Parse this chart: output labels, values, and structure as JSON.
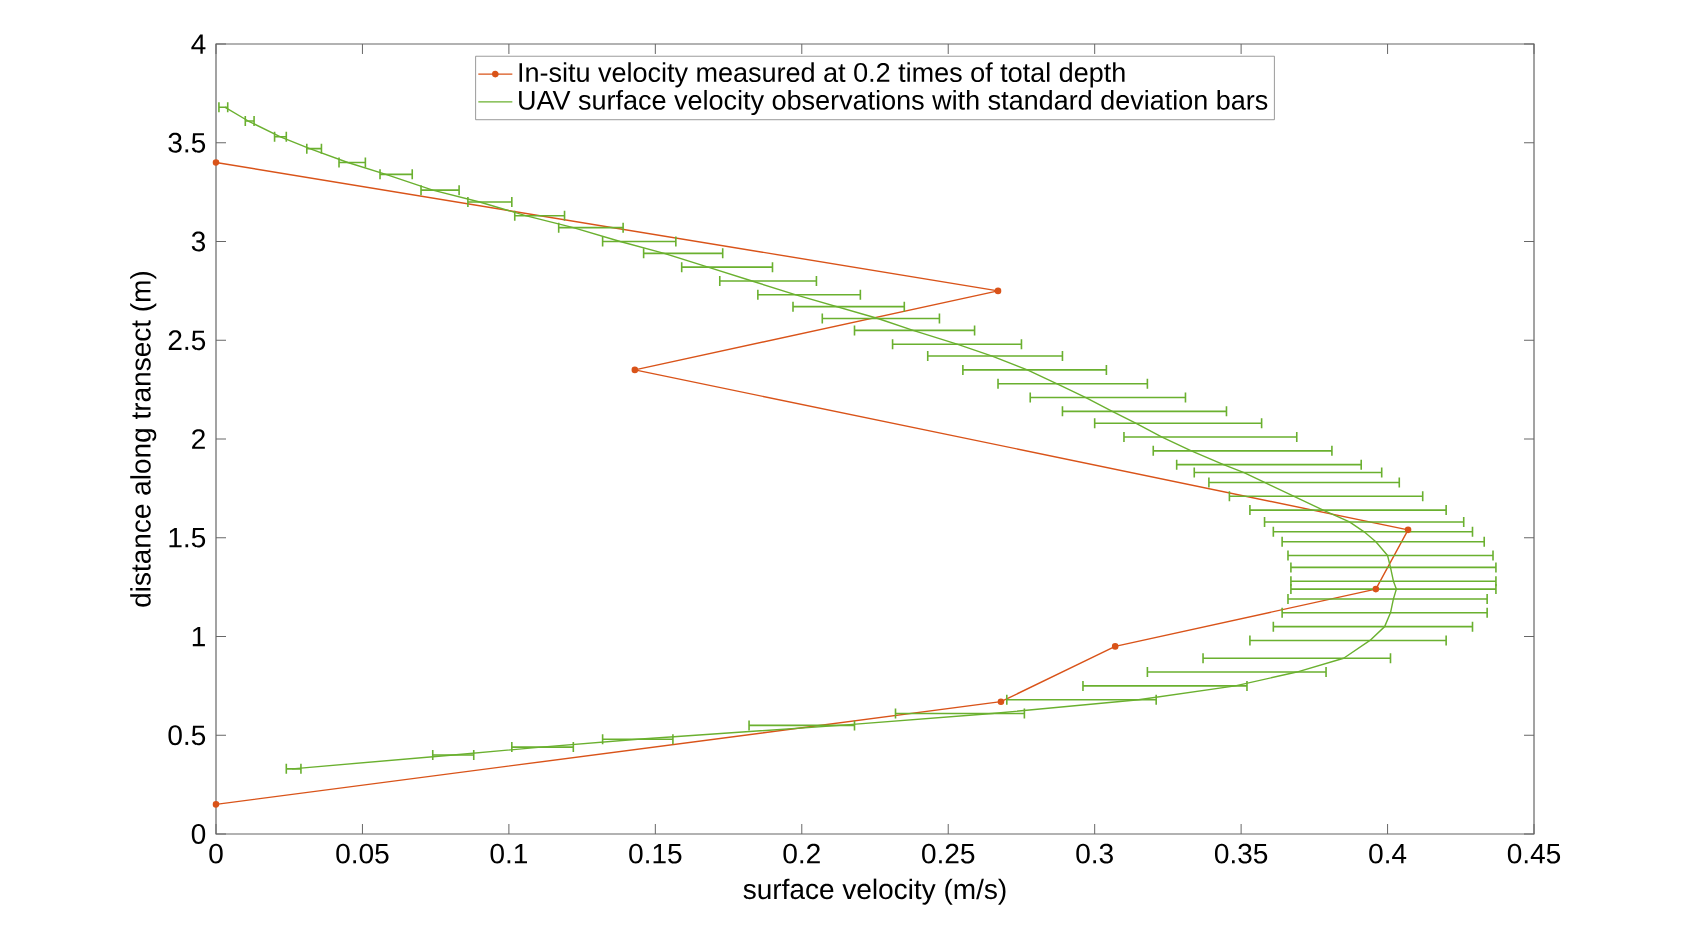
{
  "chart_data": {
    "type": "line",
    "xlabel": "surface velocity (m/s)",
    "ylabel": "distance along transect (m)",
    "xlim": [
      0,
      0.45
    ],
    "ylim": [
      0,
      4
    ],
    "xticks": [
      0,
      0.05,
      0.1,
      0.15,
      0.2,
      0.25,
      0.3,
      0.35,
      0.4,
      0.45
    ],
    "yticks": [
      0,
      0.5,
      1,
      1.5,
      2,
      2.5,
      3,
      3.5,
      4
    ],
    "grid": false,
    "legend": "top",
    "series": [
      {
        "name": "In-situ velocity measured at 0.2 times of total depth",
        "color": "#d95319",
        "marker": "circle",
        "x": [
          0,
          0.267,
          0.143,
          0.407,
          0.396,
          0.307,
          0.268,
          0
        ],
        "values": [
          3.4,
          2.75,
          2.35,
          1.54,
          1.24,
          0.95,
          0.67,
          0.15
        ]
      },
      {
        "name": "UAV surface velocity observations with standard deviation bars",
        "color": "#6ab02f",
        "marker": "none",
        "x": [
          0.003,
          0.011,
          0.022,
          0.032,
          0.045,
          0.058,
          0.074,
          0.09,
          0.106,
          0.122,
          0.138,
          0.153,
          0.168,
          0.183,
          0.198,
          0.212,
          0.226,
          0.238,
          0.253,
          0.265,
          0.277,
          0.287,
          0.297,
          0.306,
          0.314,
          0.323,
          0.333,
          0.344,
          0.351,
          0.358,
          0.368,
          0.378,
          0.387,
          0.392,
          0.396,
          0.4,
          0.401,
          0.402,
          0.403,
          0.402,
          0.401,
          0.399,
          0.394,
          0.385,
          0.369,
          0.348,
          0.315,
          0.265,
          0.213,
          0.144,
          0.111,
          0.081,
          0.026
        ],
        "values": [
          3.68,
          3.61,
          3.53,
          3.47,
          3.4,
          3.34,
          3.26,
          3.2,
          3.13,
          3.07,
          3.0,
          2.94,
          2.87,
          2.8,
          2.73,
          2.67,
          2.61,
          2.55,
          2.48,
          2.42,
          2.35,
          2.28,
          2.21,
          2.14,
          2.08,
          2.01,
          1.94,
          1.87,
          1.83,
          1.78,
          1.71,
          1.64,
          1.58,
          1.53,
          1.48,
          1.41,
          1.35,
          1.28,
          1.24,
          1.19,
          1.12,
          1.05,
          0.98,
          0.89,
          0.82,
          0.75,
          0.68,
          0.61,
          0.55,
          0.48,
          0.44,
          0.4,
          0.33
        ],
        "xerrors": [
          [
            0.001,
            0.004
          ],
          [
            0.01,
            0.013
          ],
          [
            0.02,
            0.024
          ],
          [
            0.031,
            0.036
          ],
          [
            0.042,
            0.051
          ],
          [
            0.056,
            0.067
          ],
          [
            0.07,
            0.083
          ],
          [
            0.086,
            0.101
          ],
          [
            0.102,
            0.119
          ],
          [
            0.117,
            0.139
          ],
          [
            0.132,
            0.157
          ],
          [
            0.146,
            0.173
          ],
          [
            0.159,
            0.19
          ],
          [
            0.172,
            0.205
          ],
          [
            0.185,
            0.22
          ],
          [
            0.197,
            0.235
          ],
          [
            0.207,
            0.247
          ],
          [
            0.218,
            0.259
          ],
          [
            0.231,
            0.275
          ],
          [
            0.243,
            0.289
          ],
          [
            0.255,
            0.304
          ],
          [
            0.267,
            0.318
          ],
          [
            0.278,
            0.331
          ],
          [
            0.289,
            0.345
          ],
          [
            0.3,
            0.357
          ],
          [
            0.31,
            0.369
          ],
          [
            0.32,
            0.381
          ],
          [
            0.328,
            0.391
          ],
          [
            0.334,
            0.398
          ],
          [
            0.339,
            0.404
          ],
          [
            0.346,
            0.412
          ],
          [
            0.353,
            0.42
          ],
          [
            0.358,
            0.426
          ],
          [
            0.361,
            0.429
          ],
          [
            0.364,
            0.433
          ],
          [
            0.366,
            0.436
          ],
          [
            0.367,
            0.437
          ],
          [
            0.367,
            0.437
          ],
          [
            0.367,
            0.437
          ],
          [
            0.366,
            0.434
          ],
          [
            0.364,
            0.434
          ],
          [
            0.361,
            0.429
          ],
          [
            0.353,
            0.42
          ],
          [
            0.337,
            0.401
          ],
          [
            0.318,
            0.379
          ],
          [
            0.296,
            0.352
          ],
          [
            0.27,
            0.321
          ],
          [
            0.232,
            0.276
          ],
          [
            0.182,
            0.218
          ],
          [
            0.132,
            0.156
          ],
          [
            0.101,
            0.122
          ],
          [
            0.074,
            0.088
          ],
          [
            0.024,
            0.029
          ]
        ]
      }
    ]
  }
}
